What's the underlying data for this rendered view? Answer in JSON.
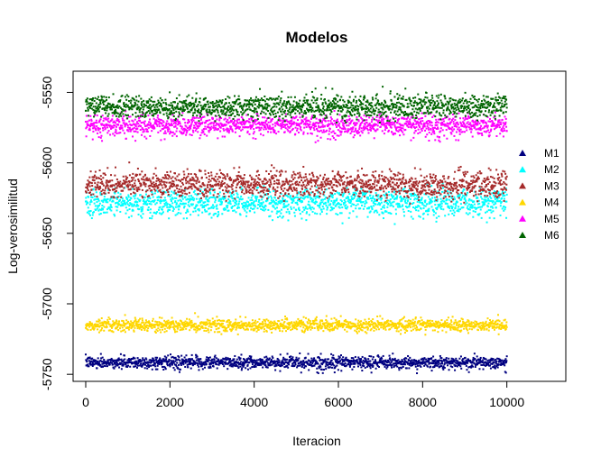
{
  "chart_data": {
    "type": "scatter",
    "title": "Modelos",
    "xlabel": "Iteracion",
    "ylabel": "Log-verosimilitud",
    "xlim": [
      -300,
      11400
    ],
    "ylim": [
      -5755,
      -5535
    ],
    "x_ticks": [
      0,
      2000,
      4000,
      6000,
      8000,
      10000
    ],
    "y_ticks": [
      -5550,
      -5600,
      -5650,
      -5700,
      -5750
    ],
    "x_range": [
      0,
      10000
    ],
    "grid": false,
    "legend_position": "right",
    "series": [
      {
        "name": "M1",
        "color": "#000080",
        "center": -5741.5,
        "spread": 2.0,
        "lower_tail": 6
      },
      {
        "name": "M2",
        "color": "#00FFFF",
        "center": -5628,
        "spread": 4.5,
        "lower_tail": 7
      },
      {
        "name": "M3",
        "color": "#A52A2A",
        "center": -5615,
        "spread": 4.5,
        "lower_tail": 4
      },
      {
        "name": "M4",
        "color": "#FFD700",
        "center": -5715,
        "spread": 2.2,
        "lower_tail": 3
      },
      {
        "name": "M5",
        "color": "#FF00FF",
        "center": -5573,
        "spread": 3.5,
        "lower_tail": 8
      },
      {
        "name": "M6",
        "color": "#006400",
        "center": -5560,
        "spread": 4.0,
        "lower_tail": 4
      }
    ],
    "legend_order": [
      "M1",
      "M2",
      "M3",
      "M4",
      "M5",
      "M6"
    ],
    "draw_order": [
      "M1",
      "M4",
      "M2",
      "M3",
      "M5",
      "M6"
    ]
  }
}
